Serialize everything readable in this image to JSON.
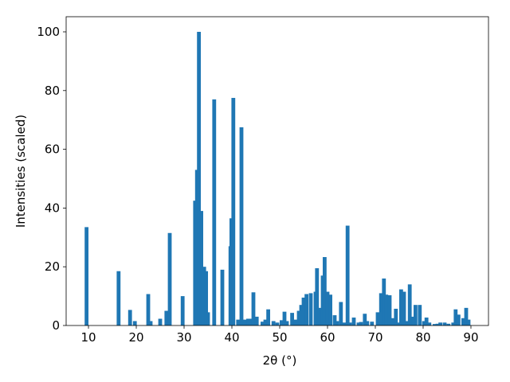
{
  "chart_data": {
    "type": "bar",
    "xlabel": "2θ (°)",
    "ylabel": "Intensities (scaled)",
    "color": "#1f77b4",
    "x": [
      9.6,
      16.3,
      18.7,
      19.7,
      22.5,
      23.0,
      25.0,
      26.3,
      27.0,
      29.7,
      32.3,
      32.7,
      33.1,
      33.6,
      34.2,
      34.6,
      35.0,
      36.3,
      38.0,
      39.7,
      39.9,
      40.3,
      41.3,
      42.0,
      42.7,
      43.4,
      44.0,
      44.5,
      45.2,
      46.4,
      47.0,
      47.6,
      48.7,
      49.5,
      50.4,
      51.0,
      51.5,
      52.6,
      53.3,
      54.0,
      54.5,
      55.0,
      55.6,
      56.5,
      57.5,
      57.8,
      58.4,
      59.0,
      59.4,
      60.0,
      60.6,
      61.5,
      62.0,
      62.8,
      63.5,
      64.2,
      64.7,
      65.5,
      66.5,
      67.0,
      67.8,
      68.3,
      69.3,
      70.5,
      71.2,
      71.8,
      72.3,
      73.0,
      73.6,
      74.3,
      75.0,
      75.4,
      76.0,
      76.6,
      77.2,
      77.6,
      78.4,
      79.3,
      80.2,
      80.7,
      81.3,
      82.4,
      83.0,
      83.6,
      84.5,
      85.3,
      86.3,
      86.8,
      87.4,
      88.4,
      89.0,
      89.5
    ],
    "values": [
      33.5,
      18.5,
      5.3,
      1.5,
      10.7,
      1.5,
      2.3,
      5,
      31.5,
      10,
      42.5,
      53,
      100,
      39,
      20,
      18.5,
      4.5,
      77,
      19,
      27,
      36.5,
      77.5,
      2,
      67.5,
      2,
      2.3,
      2.3,
      11.3,
      3,
      1.3,
      2,
      5.5,
      1.5,
      1,
      1.8,
      4.7,
      1.5,
      4.3,
      2,
      5,
      7,
      9.5,
      10.7,
      11,
      11.5,
      19.5,
      6,
      17,
      23.3,
      11.5,
      10.5,
      3.5,
      1.5,
      8,
      1,
      34,
      1,
      2.7,
      1,
      1.2,
      4,
      1.5,
      1.3,
      4.5,
      11,
      16,
      10.5,
      10.3,
      2.5,
      5.7,
      1,
      12.3,
      11.5,
      1.5,
      14,
      3,
      7,
      7,
      1.5,
      2.7,
      1,
      0.5,
      0.6,
      1,
      1,
      0.6,
      1,
      5.5,
      3.7,
      2.5,
      6,
      2
    ],
    "xlim": [
      5.33,
      93.67
    ],
    "ylim": [
      0,
      105.15
    ],
    "xticks": [
      10,
      20,
      30,
      40,
      50,
      60,
      70,
      80,
      90
    ],
    "yticks": [
      0,
      20,
      40,
      60,
      80,
      100
    ]
  }
}
